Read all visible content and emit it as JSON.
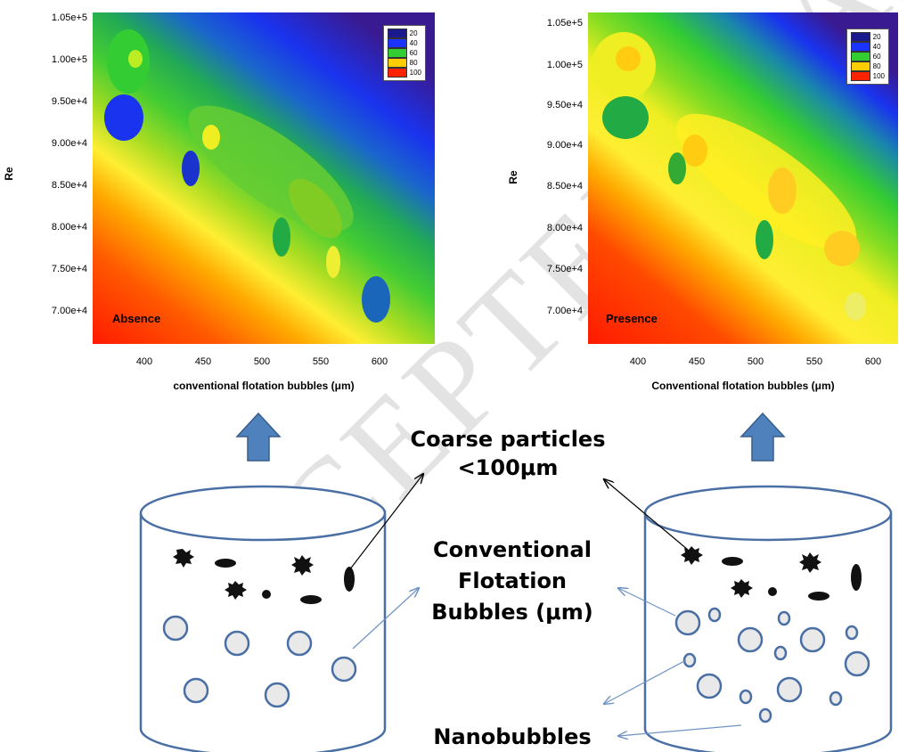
{
  "watermark": "ACCEPTED MANUSCRIPT",
  "colors": {
    "c20": "#1a1a8c",
    "c40": "#1a33ff",
    "c60": "#33cc33",
    "c80": "#ffcc00",
    "c100": "#ff2200",
    "arrow_fill": "#4f81bd",
    "arrow_stroke": "#385d8a",
    "cylinder": "#4a6fa5",
    "bubble_fill": "#e9e9e9"
  },
  "left_plot": {
    "panel_label": "Absence",
    "y_axis_label": "Re",
    "x_axis_label": "conventional flotation bubbles (μm)",
    "y_ticks": [
      "1.05e+5",
      "1.00e+5",
      "9.50e+4",
      "9.00e+4",
      "8.50e+4",
      "8.00e+4",
      "7.50e+4",
      "7.00e+4"
    ],
    "x_ticks": [
      "400",
      "450",
      "500",
      "550",
      "600"
    ],
    "legend": [
      {
        "label": "20",
        "color": "#1a1a8c"
      },
      {
        "label": "40",
        "color": "#1a33ff"
      },
      {
        "label": "60",
        "color": "#33cc33"
      },
      {
        "label": "80",
        "color": "#ffcc00"
      },
      {
        "label": "100",
        "color": "#ff2200"
      }
    ]
  },
  "right_plot": {
    "panel_label": "Presence",
    "y_axis_label": "Re",
    "x_axis_label": "Conventional flotation bubbles (μm)",
    "y_ticks": [
      "1.05e+5",
      "1.00e+5",
      "9.50e+4",
      "9.00e+4",
      "8.50e+4",
      "8.00e+4",
      "7.50e+4",
      "7.00e+4"
    ],
    "x_ticks": [
      "400",
      "450",
      "500",
      "550",
      "600"
    ],
    "legend": [
      {
        "label": "20",
        "color": "#1a1a8c"
      },
      {
        "label": "40",
        "color": "#1a33ff"
      },
      {
        "label": "60",
        "color": "#33cc33"
      },
      {
        "label": "80",
        "color": "#ffcc00"
      },
      {
        "label": "100",
        "color": "#ff2200"
      }
    ]
  },
  "labels": {
    "coarse_line1": "Coarse particles",
    "coarse_line2": "<100μm",
    "conv_line1": "Conventional",
    "conv_line2": "Flotation",
    "conv_line3": "Bubbles (μm)",
    "nano": "Nanobubbles"
  }
}
